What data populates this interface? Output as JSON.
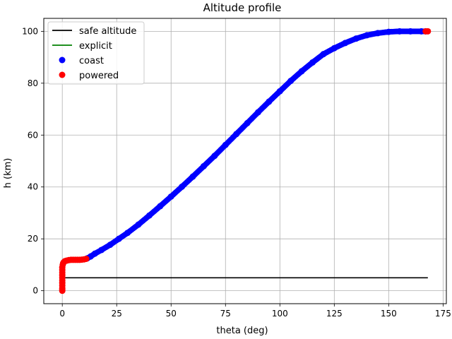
{
  "chart_data": {
    "type": "scatter",
    "title": "Altitude profile",
    "xlabel": "theta (deg)",
    "ylabel": "h (km)",
    "xlim": [
      -8.5,
      176.5
    ],
    "ylim": [
      -5,
      105
    ],
    "xticks": [
      0,
      25,
      50,
      75,
      100,
      125,
      150,
      175
    ],
    "yticks": [
      0,
      20,
      40,
      60,
      80,
      100
    ],
    "xtick_labels": [
      "0",
      "25",
      "50",
      "75",
      "100",
      "125",
      "150",
      "175"
    ],
    "ytick_labels": [
      "0",
      "20",
      "40",
      "60",
      "80",
      "100"
    ],
    "grid": true,
    "legend_position": "upper left",
    "series": [
      {
        "name": "safe altitude",
        "kind": "line",
        "color": "#000000",
        "x": [
          0,
          168
        ],
        "y": [
          5,
          5
        ]
      },
      {
        "name": "explicit",
        "kind": "line",
        "color": "#008000",
        "x": [],
        "y": []
      },
      {
        "name": "coast",
        "kind": "markers",
        "color": "#0000ff",
        "x": [
          11.5,
          13,
          15,
          18,
          22,
          26,
          30,
          35,
          40,
          45,
          50,
          55,
          60,
          65,
          70,
          75,
          80,
          85,
          90,
          95,
          100,
          105,
          110,
          115,
          120,
          125,
          130,
          135,
          140,
          145,
          150,
          155,
          160,
          165,
          167
        ],
        "y": [
          12.5,
          13.2,
          14.3,
          15.7,
          17.7,
          20.0,
          22.3,
          25.5,
          29.0,
          32.6,
          36.3,
          40.1,
          44.0,
          48.0,
          52.0,
          56.2,
          60.4,
          64.6,
          68.8,
          72.9,
          76.9,
          80.9,
          84.6,
          88.0,
          91.2,
          93.5,
          95.5,
          97.2,
          98.5,
          99.3,
          99.8,
          100.0,
          100.0,
          100.0,
          100.0
        ]
      },
      {
        "name": "powered",
        "kind": "markers",
        "color": "#ff0000",
        "x": [
          0,
          0,
          0,
          0,
          0,
          0,
          0,
          0,
          0,
          0,
          0,
          0.2,
          0.4,
          0.7,
          1.2,
          2,
          3,
          4,
          5,
          6,
          7,
          8,
          9,
          10,
          11,
          167,
          168
        ],
        "y": [
          0,
          0.5,
          1,
          2,
          3,
          4,
          5,
          6,
          7,
          8,
          9,
          10,
          10.6,
          11,
          11.4,
          11.6,
          11.8,
          11.9,
          11.9,
          11.9,
          11.9,
          11.9,
          12.0,
          12.1,
          12.3,
          100.0,
          100.0
        ]
      }
    ]
  }
}
